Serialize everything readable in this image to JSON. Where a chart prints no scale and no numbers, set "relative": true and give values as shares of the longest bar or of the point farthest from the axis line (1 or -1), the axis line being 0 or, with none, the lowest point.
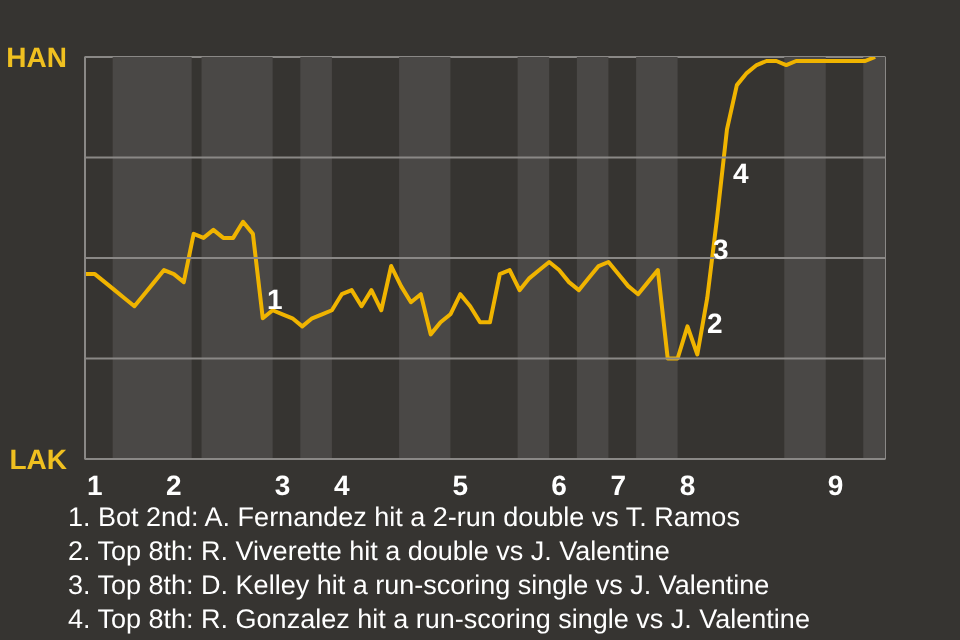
{
  "chart_data": {
    "type": "line",
    "relative": true,
    "categories": [
      null,
      "1",
      null,
      null,
      null,
      null,
      null,
      null,
      null,
      "2",
      null,
      null,
      null,
      null,
      null,
      null,
      null,
      null,
      null,
      null,
      "3",
      null,
      null,
      null,
      null,
      null,
      "4",
      null,
      null,
      null,
      null,
      null,
      null,
      null,
      null,
      null,
      null,
      null,
      "5",
      null,
      null,
      null,
      null,
      null,
      null,
      null,
      null,
      null,
      "6",
      null,
      null,
      null,
      null,
      null,
      "7",
      null,
      null,
      null,
      null,
      null,
      null,
      "8",
      null,
      null,
      null,
      null,
      null,
      null,
      null,
      null,
      null,
      null,
      null,
      null,
      null,
      null,
      "9",
      null,
      null,
      null,
      null
    ],
    "grid": "y",
    "marker": "none",
    "line_style": "solid",
    "series": [
      {
        "color": "#f0b400",
        "values": [
          0.46,
          0.46,
          0.44,
          0.42,
          0.4,
          0.38,
          0.41,
          0.44,
          0.47,
          0.46,
          0.44,
          0.56,
          0.55,
          0.57,
          0.55,
          0.55,
          0.59,
          0.56,
          0.35,
          0.37,
          0.36,
          0.35,
          0.33,
          0.35,
          0.36,
          0.37,
          0.41,
          0.42,
          0.38,
          0.42,
          0.37,
          0.48,
          0.43,
          0.39,
          0.41,
          0.31,
          0.34,
          0.36,
          0.41,
          0.38,
          0.34,
          0.34,
          0.46,
          0.47,
          0.42,
          0.45,
          0.47,
          0.49,
          0.47,
          0.44,
          0.42,
          0.45,
          0.48,
          0.49,
          0.46,
          0.43,
          0.41,
          0.44,
          0.47,
          0.25,
          0.25,
          0.33,
          0.26,
          0.4,
          0.6,
          0.82,
          0.93,
          0.96,
          0.98,
          0.99,
          0.99,
          0.98,
          0.99,
          0.99,
          0.99,
          0.99,
          0.99,
          0.99,
          0.99,
          0.99,
          1
        ]
      }
    ],
    "annotations": [
      "HAN",
      "LAK",
      "1",
      "2",
      "3",
      "4",
      "1. Bot 2nd: A. Fernandez hit a 2-run double vs T. Ramos",
      "2. Top 8th: R. Viverette hit a double vs J. Valentine",
      "3. Top 8th: D. Kelley hit a run-scoring single vs J. Valentine",
      "4. Top 8th: R. Gonzalez hit a run-scoring single vs J. Valentine"
    ]
  }
}
